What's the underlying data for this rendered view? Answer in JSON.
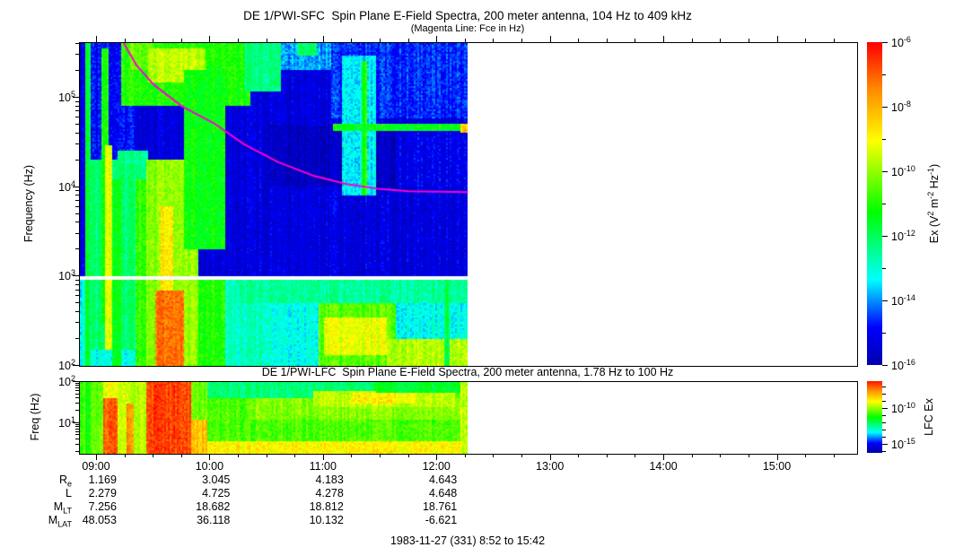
{
  "figure_name": "DE-1 PWI spectrogram summary plot",
  "frame_color": "#000000",
  "colormap": {
    "domain": [
      -16.5,
      -6
    ],
    "stops": [
      {
        "p": 0.0,
        "c": "#00008b"
      },
      {
        "p": 0.16,
        "c": "#0000ff"
      },
      {
        "p": 0.3,
        "c": "#00ffff"
      },
      {
        "p": 0.5,
        "c": "#00ff00"
      },
      {
        "p": 0.71,
        "c": "#ffff00"
      },
      {
        "p": 0.86,
        "c": "#ff8c00"
      },
      {
        "p": 1.0,
        "c": "#ff0000"
      }
    ]
  },
  "chart_data": [
    {
      "type": "heatmap",
      "instrument": "DE 1/PWI-SFC",
      "title": "DE 1/PWI-SFC  Spin Plane E-Field Spectra, 200 meter antenna, 104 Hz to 409 kHz",
      "subtitle": "(Magenta Line: Fce in Hz)",
      "ylabel": "Frequency (Hz)",
      "x_axis": {
        "start_hour": 8.85,
        "end_hour": 15.7,
        "tick_hours": [
          9,
          10,
          11,
          12,
          13,
          14,
          15
        ],
        "tick_labels": [
          "09:00",
          "10:00",
          "11:00",
          "12:00",
          "13:00",
          "14:00",
          "15:00"
        ],
        "minor_step_hours": 0.25
      },
      "y_axis": {
        "scale": "log",
        "min_hz": 100,
        "max_hz": 409000,
        "tick_values": [
          100000,
          10000,
          1000,
          100
        ],
        "tick_labels": [
          "10^5",
          "10^4",
          "10^3",
          "10^2"
        ]
      },
      "colorbar": {
        "label": "Ex (V^2 m^-2 Hz^-1)",
        "range_exponents": [
          -6,
          -16
        ],
        "tick_exponents": [
          -6,
          -8,
          -10,
          -12,
          -14,
          -16
        ],
        "tick_labels": [
          "10^-6",
          "10^-8",
          "10^-10",
          "10^-12",
          "10^-14",
          "10^-16"
        ],
        "minor_tick_exponents": [
          -7,
          -9,
          -11,
          -13,
          -15
        ]
      },
      "data_end_hour": 12.27,
      "gap_band_hz": [
        900,
        1010
      ],
      "fce_line": {
        "color": "#ff00cc",
        "units": "Hz",
        "points": [
          [
            9.236,
            409000
          ],
          [
            9.35,
            230000
          ],
          [
            9.5,
            140000
          ],
          [
            9.75,
            80000
          ],
          [
            10.03,
            52000
          ],
          [
            10.3,
            30000
          ],
          [
            10.6,
            19000
          ],
          [
            10.9,
            13500
          ],
          [
            11.2,
            10800
          ],
          [
            11.5,
            9500
          ],
          [
            11.75,
            9000
          ],
          [
            12.27,
            8800
          ]
        ]
      },
      "background_regions": [
        {
          "t": [
            8.85,
            12.27
          ],
          "f": [
            1010,
            409000
          ],
          "v": -15.3
        },
        {
          "t": [
            8.85,
            12.27
          ],
          "f": [
            100,
            900
          ],
          "v": -13.2
        }
      ],
      "features": [
        {
          "t": [
            8.885,
            8.94
          ],
          "f": [
            100,
            409000
          ],
          "v": -11.6
        },
        {
          "t": [
            8.94,
            9.33
          ],
          "f": [
            20000,
            409000
          ],
          "v": -14.9
        },
        {
          "t": [
            8.94,
            9.45
          ],
          "f": [
            150,
            20000
          ],
          "v": -12.2
        },
        {
          "t": [
            9.03,
            9.1
          ],
          "f": [
            300,
            350000
          ],
          "v": -11.2
        },
        {
          "t": [
            9.06,
            9.12
          ],
          "f": [
            150,
            30000
          ],
          "v": -9.4
        },
        {
          "t": [
            9.12,
            9.21
          ],
          "f": [
            100,
            12000
          ],
          "v": -11.4
        },
        {
          "t": [
            9.2,
            10.35
          ],
          "f": [
            80000,
            409000
          ],
          "v": -11.0
        },
        {
          "t": [
            9.28,
            9.5
          ],
          "f": [
            200000,
            409000
          ],
          "v": -10.4
        },
        {
          "t": [
            9.45,
            9.95
          ],
          "f": [
            150000,
            350000
          ],
          "v": -9.6
        },
        {
          "t": [
            9.18,
            9.45
          ],
          "f": [
            18000,
            26000
          ],
          "v": -12.4
        },
        {
          "t": [
            9.33,
            9.43
          ],
          "f": [
            100,
            12000
          ],
          "v": -10.8
        },
        {
          "t": [
            9.43,
            9.88
          ],
          "f": [
            100,
            20000
          ],
          "v": -10.0
        },
        {
          "t": [
            9.5,
            9.76
          ],
          "f": [
            100,
            700
          ],
          "v": -7.2
        },
        {
          "t": [
            9.55,
            9.66
          ],
          "f": [
            700,
            6000
          ],
          "v": -8.8
        },
        {
          "t": [
            9.76,
            10.12
          ],
          "f": [
            2000,
            200000
          ],
          "v": -11.3
        },
        {
          "t": [
            9.88,
            10.12
          ],
          "f": [
            100,
            900
          ],
          "v": -11.0
        },
        {
          "t": [
            10.12,
            10.52
          ],
          "f": [
            100,
            900
          ],
          "v": -12.8
        },
        {
          "t": [
            10.3,
            10.62
          ],
          "f": [
            120000,
            409000
          ],
          "v": -12.3
        },
        {
          "t": [
            10.62,
            11.05
          ],
          "f": [
            200000,
            409000
          ],
          "v": -13.9
        },
        {
          "t": [
            10.75,
            10.93
          ],
          "f": [
            300000,
            409000
          ],
          "v": -12.1
        },
        {
          "t": [
            10.5,
            11.62
          ],
          "f": [
            10000,
            48000
          ],
          "v": -15.7
        },
        {
          "t": [
            11.05,
            12.27
          ],
          "f": [
            60000,
            409000
          ],
          "v": -14.6
        },
        {
          "t": [
            11.15,
            11.45
          ],
          "f": [
            8000,
            300000
          ],
          "v": -13.4
        },
        {
          "t": [
            11.33,
            11.38
          ],
          "f": [
            8000,
            260000
          ],
          "v": -11.0
        },
        {
          "t": [
            11.08,
            12.27
          ],
          "f": [
            42000,
            50000
          ],
          "v": -11.4
        },
        {
          "t": [
            12.19,
            12.27
          ],
          "f": [
            40000,
            52000
          ],
          "v": -8.4
        },
        {
          "t": [
            11.62,
            12.27
          ],
          "f": [
            10000,
            40000
          ],
          "v": -15.1
        },
        {
          "t": [
            10.2,
            12.27
          ],
          "f": [
            500,
            900
          ],
          "v": -12.5
        },
        {
          "t": [
            10.95,
            11.62
          ],
          "f": [
            100,
            500
          ],
          "v": -10.5
        },
        {
          "t": [
            11.0,
            11.55
          ],
          "f": [
            130,
            350
          ],
          "v": -9.2
        },
        {
          "t": [
            11.55,
            12.27
          ],
          "f": [
            100,
            200
          ],
          "v": -9.7
        },
        {
          "t": [
            12.05,
            12.1
          ],
          "f": [
            100,
            900
          ],
          "v": -11.8
        }
      ]
    },
    {
      "type": "heatmap",
      "instrument": "DE 1/PWI-LFC",
      "title": "DE 1/PWI-LFC  Spin Plane E-Field Spectra, 200 meter antenna, 1.78 Hz to 100 Hz",
      "ylabel": "Freq (Hz)",
      "y_axis": {
        "scale": "log",
        "min_hz": 1.78,
        "max_hz": 100,
        "tick_values": [
          100,
          10
        ],
        "tick_labels": [
          "10^2",
          "10^1"
        ]
      },
      "colorbar": {
        "label": "LFC Ex",
        "range_exponents": [
          -6.25,
          -16.25
        ],
        "tick_exponents": [
          -10,
          -15
        ],
        "tick_labels": [
          "10^-10",
          "10^-15"
        ],
        "minor_tick_exponents": [
          -7,
          -8,
          -9,
          -11,
          -12,
          -13,
          -14,
          -16
        ]
      },
      "data_end_hour": 12.27,
      "background_regions": [
        {
          "t": [
            8.85,
            12.27
          ],
          "f": [
            1.78,
            100
          ],
          "v": -10.6
        }
      ],
      "features": [
        {
          "t": [
            8.885,
            8.94
          ],
          "f": [
            1.78,
            100
          ],
          "v": -11.4
        },
        {
          "t": [
            9.0,
            9.05
          ],
          "f": [
            1.78,
            100
          ],
          "v": -10.2
        },
        {
          "t": [
            9.05,
            9.17
          ],
          "f": [
            1.78,
            40
          ],
          "v": -7.0
        },
        {
          "t": [
            9.05,
            9.17
          ],
          "f": [
            40,
            100
          ],
          "v": -9.2
        },
        {
          "t": [
            9.17,
            9.42
          ],
          "f": [
            1.78,
            100
          ],
          "v": -9.6
        },
        {
          "t": [
            9.25,
            9.32
          ],
          "f": [
            1.78,
            30
          ],
          "v": -7.6
        },
        {
          "t": [
            9.42,
            9.82
          ],
          "f": [
            1.78,
            100
          ],
          "v": -6.7
        },
        {
          "t": [
            9.82,
            9.97
          ],
          "f": [
            12,
            100
          ],
          "v": -10.3
        },
        {
          "t": [
            9.82,
            9.97
          ],
          "f": [
            1.78,
            12
          ],
          "v": -8.2
        },
        {
          "t": [
            9.97,
            11.45
          ],
          "f": [
            40,
            100
          ],
          "v": -12.2
        },
        {
          "t": [
            9.97,
            12.27
          ],
          "f": [
            1.78,
            3.5
          ],
          "v": -8.9
        },
        {
          "t": [
            10.35,
            12.27
          ],
          "f": [
            12,
            40
          ],
          "v": -10.1
        },
        {
          "t": [
            10.9,
            12.15
          ],
          "f": [
            25,
            60
          ],
          "v": -9.6
        },
        {
          "t": [
            11.25,
            11.8
          ],
          "f": [
            30,
            55
          ],
          "v": -8.9
        },
        {
          "t": [
            11.45,
            12.27
          ],
          "f": [
            55,
            100
          ],
          "v": -11.6
        },
        {
          "t": [
            12.2,
            12.27
          ],
          "f": [
            1.78,
            100
          ],
          "v": -9.6
        }
      ]
    }
  ],
  "ephemeris": {
    "time_labels": [
      "09:00",
      "10:00",
      "11:00",
      "12:00",
      "13:00",
      "14:00",
      "15:00"
    ],
    "rows": [
      {
        "label": "R",
        "sub": "e",
        "values": [
          "1.169",
          "3.045",
          "4.183",
          "4.643"
        ]
      },
      {
        "label": "L",
        "sub": "",
        "values": [
          "2.279",
          "4.725",
          "4.278",
          "4.648"
        ]
      },
      {
        "label": "M",
        "sub": "LT",
        "values": [
          "7.256",
          "18.682",
          "18.812",
          "18.761"
        ]
      },
      {
        "label": "M",
        "sub": "LAT",
        "values": [
          "48.053",
          "36.118",
          "10.132",
          "-6.621"
        ]
      }
    ],
    "footer": "1983-11-27 (331) 8:52 to 15:42"
  }
}
